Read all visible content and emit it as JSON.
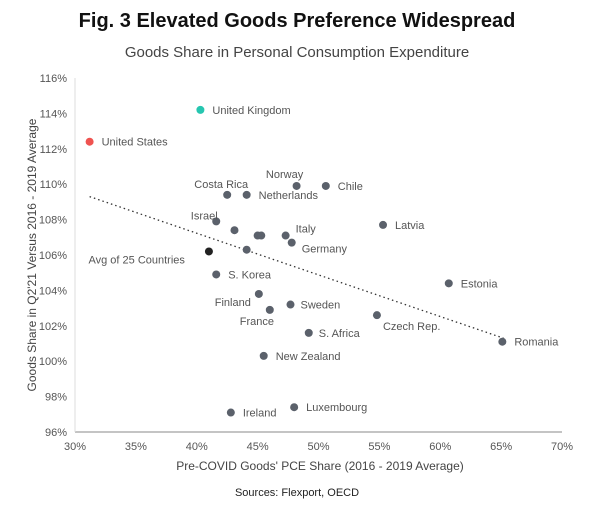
{
  "header": {
    "title": "Fig. 3 Elevated Goods Preference Widespread",
    "subtitle": "Goods Share in Personal Consumption Expenditure"
  },
  "footer": {
    "source": "Sources: Flexport, OECD"
  },
  "colors": {
    "default": "#5b616b",
    "us": "#ef5350",
    "uk": "#26c6b0",
    "avg": "#222222"
  },
  "chart_data": {
    "type": "scatter",
    "title": "Goods Share in Personal Consumption Expenditure",
    "xlabel": "Pre-COVID Goods' PCE Share (2016 - 2019 Average)",
    "ylabel": "Goods Share in Q2'21 Versus 2016 - 2019 Average",
    "xlim": [
      30,
      70
    ],
    "ylim": [
      96,
      116
    ],
    "x_ticks": [
      30,
      35,
      40,
      45,
      50,
      55,
      60,
      65,
      70
    ],
    "y_ticks": [
      96,
      98,
      100,
      102,
      104,
      106,
      108,
      110,
      112,
      114,
      116
    ],
    "tick_suffix": "%",
    "grid": false,
    "trendline": {
      "style": "dotted",
      "from": [
        31.2,
        109.3
      ],
      "to": [
        65.2,
        101.3
      ]
    },
    "points": [
      {
        "x": 31.2,
        "y": 112.4,
        "label": "United States",
        "color": "us"
      },
      {
        "x": 40.3,
        "y": 114.2,
        "label": "United Kingdom",
        "color": "uk"
      },
      {
        "x": 42.5,
        "y": 109.4,
        "label": "Costa Rica"
      },
      {
        "x": 44.1,
        "y": 109.4,
        "label": "Netherlands"
      },
      {
        "x": 48.2,
        "y": 109.9,
        "label": "Norway"
      },
      {
        "x": 50.6,
        "y": 109.9,
        "label": "Chile"
      },
      {
        "x": 41.6,
        "y": 107.9,
        "label": "Israel"
      },
      {
        "x": 43.1,
        "y": 107.4,
        "label": ""
      },
      {
        "x": 45.0,
        "y": 107.1,
        "label": ""
      },
      {
        "x": 45.3,
        "y": 107.1,
        "label": ""
      },
      {
        "x": 47.3,
        "y": 107.1,
        "label": "Italy"
      },
      {
        "x": 47.8,
        "y": 106.7,
        "label": "Germany"
      },
      {
        "x": 44.1,
        "y": 106.3,
        "label": ""
      },
      {
        "x": 55.3,
        "y": 107.7,
        "label": "Latvia"
      },
      {
        "x": 41.0,
        "y": 106.2,
        "label": "Avg of 25 Countries",
        "color": "avg"
      },
      {
        "x": 41.6,
        "y": 104.9,
        "label": "S. Korea"
      },
      {
        "x": 60.7,
        "y": 104.4,
        "label": "Estonia"
      },
      {
        "x": 45.1,
        "y": 103.8,
        "label": "Finland"
      },
      {
        "x": 47.7,
        "y": 103.2,
        "label": "Sweden"
      },
      {
        "x": 46.0,
        "y": 102.9,
        "label": "France"
      },
      {
        "x": 54.8,
        "y": 102.6,
        "label": "Czech Rep."
      },
      {
        "x": 49.2,
        "y": 101.6,
        "label": "S. Africa"
      },
      {
        "x": 65.1,
        "y": 101.1,
        "label": "Romania"
      },
      {
        "x": 45.5,
        "y": 100.3,
        "label": "New Zealand"
      },
      {
        "x": 48.0,
        "y": 97.4,
        "label": "Luxembourg"
      },
      {
        "x": 42.8,
        "y": 97.1,
        "label": "Ireland"
      }
    ]
  }
}
